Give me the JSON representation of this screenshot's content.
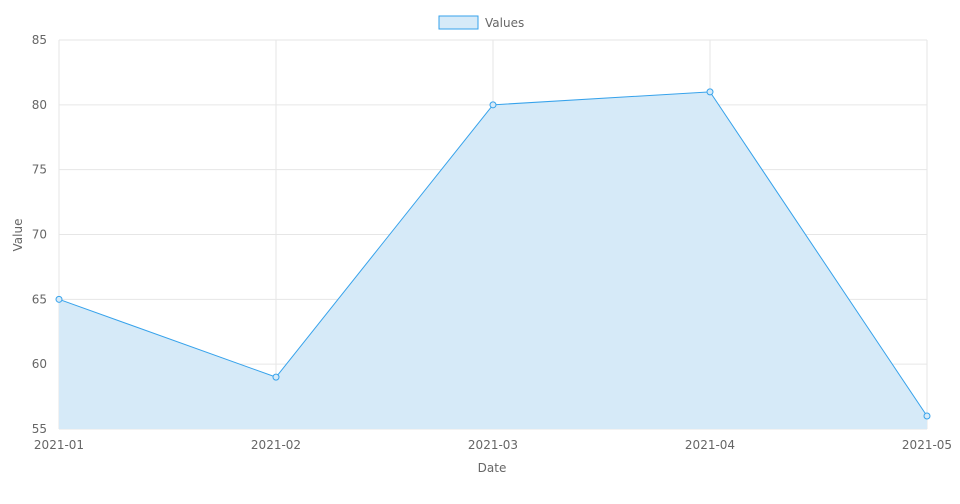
{
  "chart_data": {
    "type": "area",
    "title": "",
    "xlabel": "Date",
    "ylabel": "Value",
    "ylim": [
      55,
      85
    ],
    "y_ticks": [
      55,
      60,
      65,
      70,
      75,
      80,
      85
    ],
    "categories": [
      "2021-01",
      "2021-02",
      "2021-03",
      "2021-04",
      "2021-05"
    ],
    "series": [
      {
        "name": "Values",
        "values": [
          65,
          59,
          80,
          81,
          56
        ]
      }
    ],
    "legend": "top",
    "grid": true,
    "colors": {
      "line": "#36a2eb",
      "fill": "#d6eaf8",
      "grid": "#e6e6e6",
      "axis_text": "#666666"
    }
  }
}
